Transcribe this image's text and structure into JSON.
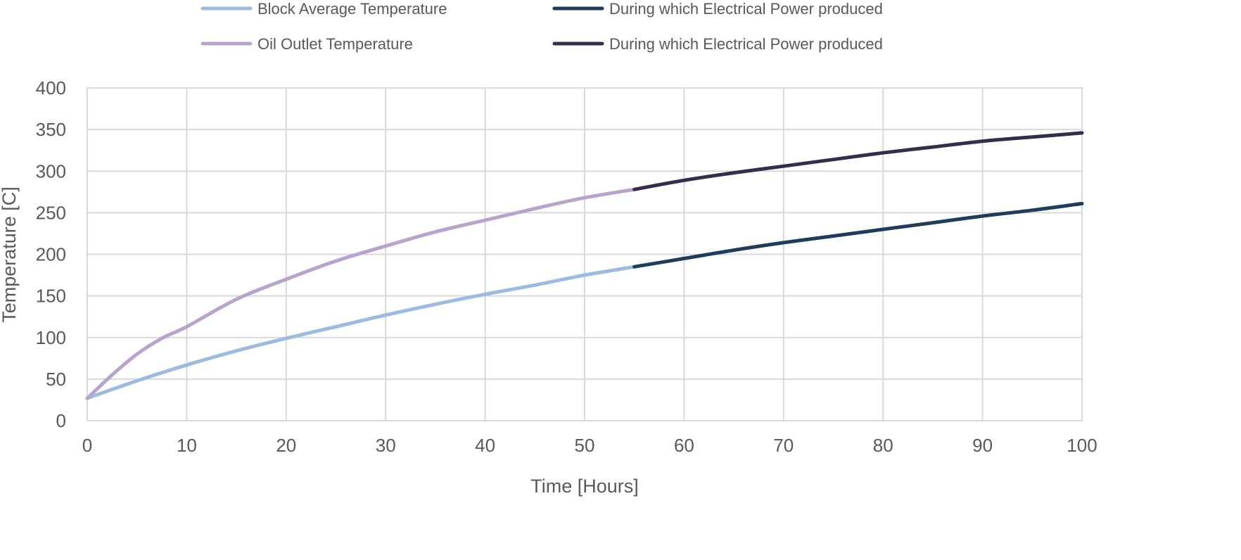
{
  "chart_data": {
    "type": "line",
    "xlabel": "Time [Hours]",
    "ylabel": "Temperature [C]",
    "xlim": [
      0,
      100
    ],
    "ylim": [
      0,
      400
    ],
    "x_ticks": [
      "0",
      "10",
      "20",
      "30",
      "40",
      "50",
      "60",
      "70",
      "80",
      "90",
      "100"
    ],
    "y_ticks": [
      "0",
      "50",
      "100",
      "150",
      "200",
      "250",
      "300",
      "350",
      "400"
    ],
    "grid": true,
    "legend_position": "top",
    "series": [
      {
        "name": "Block Average Temperature",
        "color": "#9dbbe0",
        "x": [
          0,
          5,
          10,
          15,
          20,
          25,
          30,
          35,
          40,
          45,
          50,
          55
        ],
        "y": [
          27,
          48,
          67,
          84,
          99,
          113,
          127,
          140,
          152,
          163,
          175,
          185
        ]
      },
      {
        "name": "During which Electrical Power produced",
        "color": "#1f3b5e",
        "x": [
          55,
          60,
          65,
          70,
          75,
          80,
          85,
          90,
          95,
          100
        ],
        "y": [
          185,
          195,
          205,
          214,
          222,
          230,
          238,
          246,
          253,
          261
        ]
      },
      {
        "name": "Oil Outlet Temperature",
        "color": "#b7a3cc",
        "x": [
          0,
          2.5,
          5,
          7.5,
          10,
          15,
          20,
          25,
          30,
          35,
          40,
          45,
          50,
          55
        ],
        "y": [
          27,
          55,
          80,
          99,
          113,
          146,
          170,
          192,
          210,
          227,
          241,
          255,
          268,
          278
        ]
      },
      {
        "name": "During which Electrical Power produced",
        "color": "#372c4e",
        "x": [
          55,
          60,
          65,
          70,
          75,
          80,
          85,
          90,
          95,
          100
        ],
        "y": [
          278,
          289,
          298,
          306,
          314,
          322,
          329,
          336,
          341,
          346
        ]
      }
    ]
  }
}
